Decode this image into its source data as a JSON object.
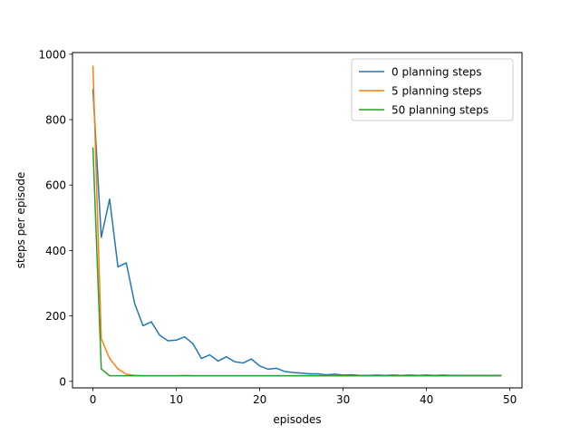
{
  "chart_data": {
    "type": "line",
    "title": "",
    "xlabel": "episodes",
    "ylabel": "steps per episode",
    "xlim": [
      -2.45,
      51.45
    ],
    "ylim": [
      -20,
      1005
    ],
    "xticks": [
      0,
      10,
      20,
      30,
      40,
      50
    ],
    "yticks": [
      0,
      200,
      400,
      600,
      800,
      1000
    ],
    "grid": false,
    "legend_position": "top-right",
    "x": [
      0,
      1,
      2,
      3,
      4,
      5,
      6,
      7,
      8,
      9,
      10,
      11,
      12,
      13,
      14,
      15,
      16,
      17,
      18,
      19,
      20,
      21,
      22,
      23,
      24,
      25,
      26,
      27,
      28,
      29,
      30,
      31,
      32,
      33,
      34,
      35,
      36,
      37,
      38,
      39,
      40,
      41,
      42,
      43,
      44,
      45,
      46,
      47,
      48,
      49
    ],
    "series": [
      {
        "name": "0 planning steps",
        "color": "#1f77b4",
        "values": [
          893,
          440,
          557,
          350,
          362,
          238,
          170,
          182,
          141,
          124,
          126,
          136,
          115,
          70,
          81,
          62,
          75,
          60,
          56,
          68,
          47,
          37,
          40,
          30,
          27,
          25,
          23,
          23,
          20,
          22,
          19,
          20,
          18,
          18,
          19,
          18,
          19,
          18,
          19,
          18,
          19,
          18,
          19,
          18,
          18,
          18,
          18,
          18,
          18,
          18
        ]
      },
      {
        "name": "5 planning steps",
        "color": "#ff7f0e",
        "values": [
          965,
          130,
          70,
          38,
          22,
          18,
          17,
          17,
          17,
          17,
          17,
          18,
          17,
          17,
          17,
          17,
          17,
          17,
          17,
          17,
          17,
          17,
          17,
          17,
          17,
          17,
          17,
          17,
          17,
          17,
          17,
          17,
          17,
          17,
          17,
          17,
          17,
          17,
          17,
          17,
          17,
          17,
          17,
          17,
          17,
          17,
          17,
          17,
          17,
          17
        ]
      },
      {
        "name": "50 planning steps",
        "color": "#2ca02c",
        "values": [
          715,
          38,
          17,
          17,
          17,
          17,
          17,
          17,
          17,
          17,
          17,
          17,
          17,
          17,
          17,
          17,
          17,
          17,
          17,
          17,
          17,
          17,
          17,
          17,
          17,
          17,
          17,
          17,
          17,
          17,
          17,
          17,
          17,
          17,
          17,
          17,
          17,
          17,
          17,
          17,
          17,
          17,
          17,
          17,
          17,
          17,
          17,
          17,
          17,
          17
        ]
      }
    ]
  }
}
